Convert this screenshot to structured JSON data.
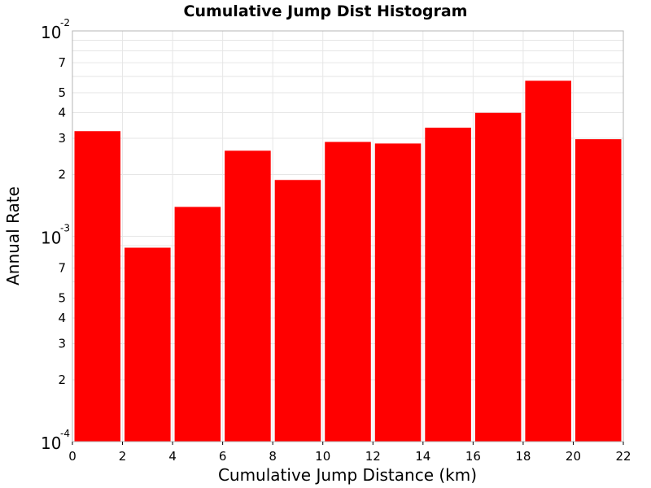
{
  "chart_data": {
    "type": "bar",
    "title": "Cumulative Jump Dist Histogram",
    "xlabel": "Cumulative Jump Distance (km)",
    "ylabel": "Annual Rate",
    "xlim": [
      0,
      22
    ],
    "ylim": [
      0.0001,
      0.01
    ],
    "y_scale": "log",
    "grid": true,
    "bar_color": "#ff0000",
    "bin_width": 2,
    "x": [
      1,
      3,
      5,
      7,
      9,
      11,
      13,
      15,
      17,
      19,
      21
    ],
    "values": [
      0.00325,
      0.00088,
      0.00139,
      0.00261,
      0.00188,
      0.00288,
      0.00283,
      0.00338,
      0.00399,
      0.00572,
      0.00297
    ],
    "x_ticks": [
      "0",
      "2",
      "4",
      "6",
      "8",
      "10",
      "12",
      "14",
      "16",
      "18",
      "20",
      "22"
    ],
    "y_major_ticks": [
      {
        "value": 0.0001,
        "base": "10",
        "exp": "-4"
      },
      {
        "value": 0.001,
        "base": "10",
        "exp": "-3"
      },
      {
        "value": 0.01,
        "base": "10",
        "exp": "-2"
      }
    ],
    "y_minor_ticks": [
      {
        "value": 0.0002,
        "label": "2"
      },
      {
        "value": 0.0003,
        "label": "3"
      },
      {
        "value": 0.0004,
        "label": "4"
      },
      {
        "value": 0.0005,
        "label": "5"
      },
      {
        "value": 0.0007,
        "label": "7"
      },
      {
        "value": 0.002,
        "label": "2"
      },
      {
        "value": 0.003,
        "label": "3"
      },
      {
        "value": 0.004,
        "label": "4"
      },
      {
        "value": 0.005,
        "label": "5"
      },
      {
        "value": 0.007,
        "label": "7"
      }
    ]
  }
}
